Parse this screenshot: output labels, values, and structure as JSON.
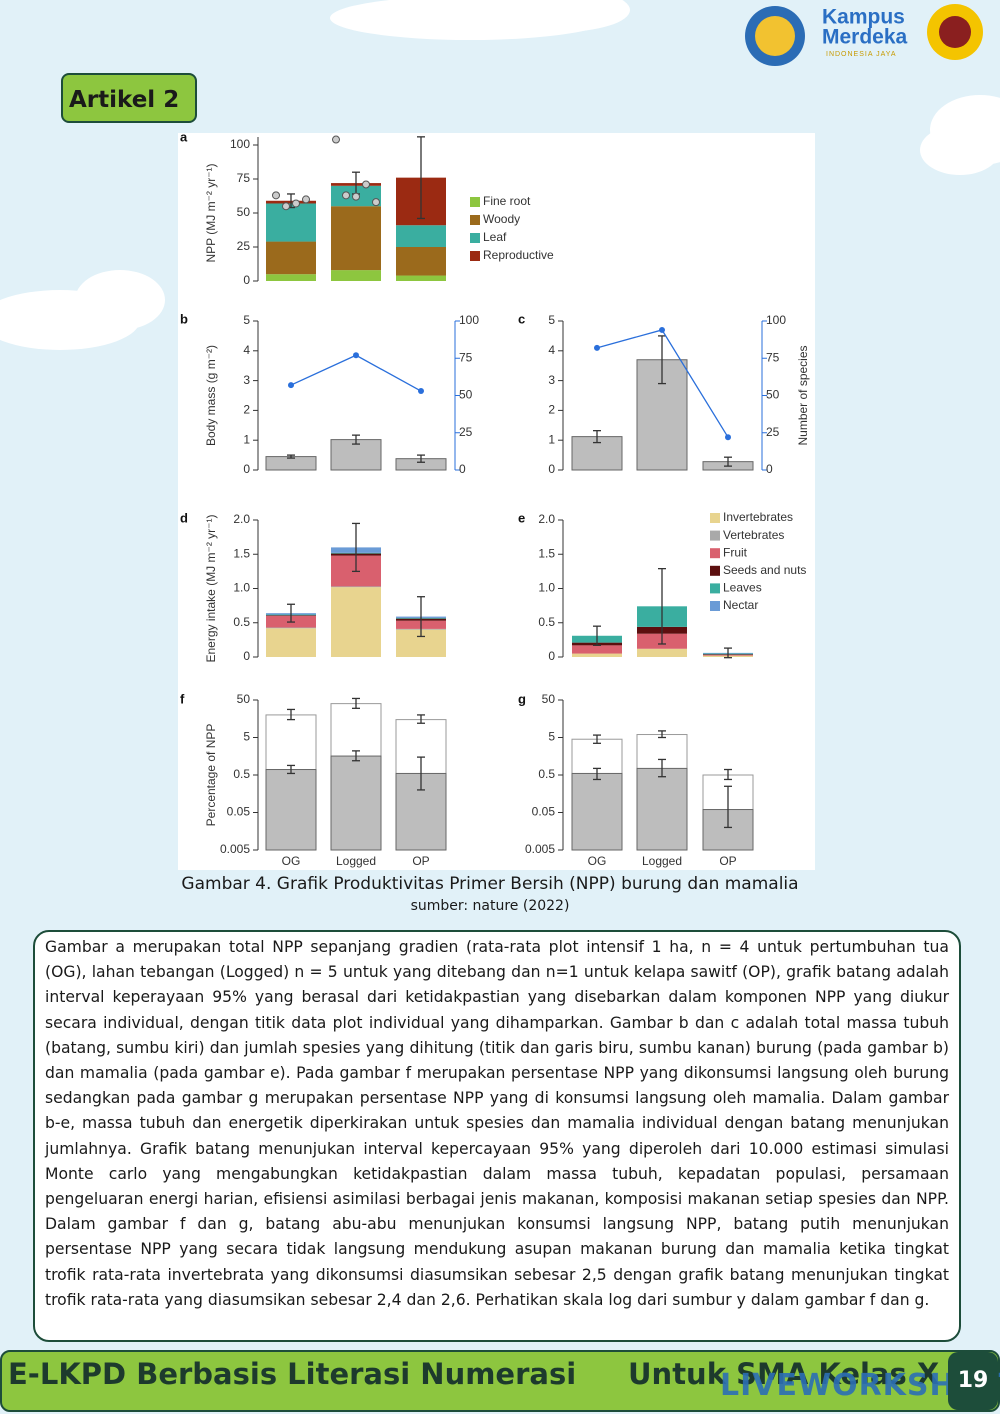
{
  "header": {
    "logo_line1": "Kampus",
    "logo_line2": "Merdeka",
    "logo_subtext": "INDONESIA JAYA"
  },
  "badge": "Artikel 2",
  "figure": {
    "caption": "Gambar 4. Grafik Produktivitas Primer Bersih (NPP) burung dan mamalia",
    "source": "sumber: nature (2022)",
    "panels": [
      {
        "label": "a",
        "type": "stacked_bar",
        "ylabel": "NPP (MJ m⁻² yr⁻¹)",
        "ylim": [
          0,
          100
        ],
        "yticks": [
          0,
          25,
          50,
          75,
          100
        ],
        "series": [
          {
            "name": "Fine root",
            "color": "#8dc63f",
            "values": [
              5,
              8,
              4
            ]
          },
          {
            "name": "Woody",
            "color": "#9b6a1c",
            "values": [
              24,
              47,
              21
            ]
          },
          {
            "name": "Leaf",
            "color": "#3aaea0",
            "values": [
              28,
              15,
              16
            ]
          },
          {
            "name": "Reproductive",
            "color": "#9b2a12",
            "values": [
              2,
              2,
              35
            ]
          }
        ],
        "errors": [
          5,
          8,
          30
        ],
        "points": [
          [
            63,
            55,
            57,
            60
          ],
          [
            104,
            63,
            62,
            71,
            58
          ],
          []
        ]
      },
      {
        "label": "b",
        "type": "bar_line",
        "ylabel": "Body mass (g m⁻²)",
        "ylim": [
          0,
          5
        ],
        "yticks": [
          0,
          1,
          2,
          3,
          4,
          5
        ],
        "bar_color": "#bdbdbd",
        "values": [
          0.45,
          1.02,
          0.38
        ],
        "errors": [
          0.05,
          0.15,
          0.12
        ],
        "y2lim": [
          0,
          100
        ],
        "y2ticks": [
          0,
          25,
          50,
          75,
          100
        ],
        "line_color": "#2a6fdb",
        "line_values": [
          57,
          77,
          53
        ]
      },
      {
        "label": "c",
        "type": "bar_line",
        "y2label": "Number of species",
        "ylim": [
          0,
          5
        ],
        "yticks": [
          0,
          1,
          2,
          3,
          4,
          5
        ],
        "bar_color": "#bdbdbd",
        "values": [
          1.12,
          3.7,
          0.28
        ],
        "errors": [
          0.2,
          0.8,
          0.15
        ],
        "y2lim": [
          0,
          100
        ],
        "y2ticks": [
          0,
          25,
          50,
          75,
          100
        ],
        "line_color": "#2a6fdb",
        "line_values": [
          82,
          94,
          22
        ]
      },
      {
        "label": "d",
        "type": "stacked_bar",
        "ylabel": "Energy intake (MJ m⁻² yr⁻¹)",
        "ylim": [
          0,
          2
        ],
        "yticks": [
          0,
          0.5,
          {
            "value": 1,
            "label": "1.0"
          },
          1.5,
          {
            "value": 2,
            "label": "2.0"
          }
        ],
        "series": [
          {
            "color": "#e8d48f",
            "values": [
              0.42,
              1.02,
              0.4
            ]
          },
          {
            "color": "#a9a9a9",
            "values": [
              0.01,
              0.01,
              0.01
            ]
          },
          {
            "color": "#d9606e",
            "values": [
              0.17,
              0.45,
              0.12
            ]
          },
          {
            "color": "#5c0f0f",
            "values": [
              0.01,
              0.03,
              0.03
            ]
          },
          {
            "color": "#3aaea0",
            "values": [
              0.01,
              0.01,
              0.01
            ]
          },
          {
            "color": "#6a9bd6",
            "values": [
              0.02,
              0.08,
              0.02
            ]
          }
        ],
        "errors": [
          0.13,
          0.35,
          0.29
        ]
      },
      {
        "label": "e",
        "type": "stacked_bar",
        "ylim": [
          0,
          2
        ],
        "yticks": [
          0,
          0.5,
          {
            "value": 1,
            "label": "1.0"
          },
          1.5,
          {
            "value": 2,
            "label": "2.0"
          }
        ],
        "series": [
          {
            "name": "Invertebrates",
            "color": "#e8d48f",
            "values": [
              0.05,
              0.12,
              0.02
            ]
          },
          {
            "name": "Vertebrates",
            "color": "#a9a9a9",
            "values": [
              0,
              0,
              0
            ]
          },
          {
            "name": "Fruit",
            "color": "#d9606e",
            "values": [
              0.12,
              0.22,
              0.01
            ]
          },
          {
            "name": "Seeds and nuts",
            "color": "#5c0f0f",
            "values": [
              0.04,
              0.1,
              0.01
            ]
          },
          {
            "name": "Leaves",
            "color": "#3aaea0",
            "values": [
              0.1,
              0.3,
              0.01
            ]
          },
          {
            "name": "Nectar",
            "color": "#6a9bd6",
            "values": [
              0,
              0,
              0.01
            ]
          }
        ],
        "errors": [
          0.14,
          0.55,
          0.07
        ]
      },
      {
        "label": "f",
        "type": "log_bar",
        "ylabel": "Percentage of NPP",
        "log": true,
        "ylim": [
          0.005,
          50
        ],
        "yticks": [
          0.005,
          0.05,
          0.5,
          5,
          50
        ],
        "categories": [
          "OG",
          "Logged",
          "OP"
        ],
        "total": {
          "color": "#ffffff",
          "values": [
            20,
            40,
            15
          ],
          "lower": [
            15,
            30,
            12
          ],
          "upper": [
            28,
            55,
            20
          ]
        },
        "direct": {
          "color": "#bdbdbd",
          "values": [
            0.7,
            1.6,
            0.55
          ],
          "lower": [
            0.55,
            1.2,
            0.2
          ],
          "upper": [
            0.9,
            2.2,
            1.5
          ]
        }
      },
      {
        "label": "g",
        "type": "log_bar",
        "log": true,
        "ylim": [
          0.005,
          50
        ],
        "yticks": [
          0.005,
          0.05,
          0.5,
          5,
          50
        ],
        "categories": [
          "OG",
          "Logged",
          "OP"
        ],
        "total": {
          "color": "#ffffff",
          "values": [
            4.5,
            6,
            0.5
          ],
          "lower": [
            3.5,
            5,
            0.38
          ],
          "upper": [
            5.8,
            7.5,
            0.7
          ]
        },
        "direct": {
          "color": "#bdbdbd",
          "values": [
            0.55,
            0.75,
            0.06
          ],
          "lower": [
            0.38,
            0.45,
            0.02
          ],
          "upper": [
            0.75,
            1.3,
            0.25
          ]
        }
      }
    ]
  },
  "paragraph": "Gambar a merupakan total NPP sepanjang gradien (rata-rata plot intensif 1 ha, n = 4 untuk pertumbuhan tua (OG), lahan tebangan (Logged) n = 5 untuk yang ditebang dan n=1 untuk kelapa sawitf (OP), grafik batang adalah interval keperayaan 95% yang berasal dari ketidakpastian yang disebarkan dalam komponen NPP yang diukur secara individual, dengan titik data plot individual yang dihamparkan. Gambar b dan c adalah total massa tubuh (batang, sumbu kiri) dan jumlah spesies yang dihitung (titik dan garis biru, sumbu kanan) burung (pada gambar b) dan mamalia (pada gambar e). Pada gambar f merupakan persentase NPP yang dikonsumsi langsung oleh burung sedangkan pada gambar g merupakan persentase NPP yang di konsumsi langsung oleh mamalia. Dalam gambar b-e, massa tubuh dan energetik diperkirakan untuk spesies dan mamalia individual dengan batang menunjukan jumlahnya. Grafik batang menunjukan interval kepercayaan 95% yang diperoleh dari 10.000 estimasi simulasi Monte carlo yang mengabungkan ketidakpastian dalam massa tubuh, kepadatan populasi, persamaan pengeluaran energi harian, efisiensi asimilasi berbagai jenis makanan, komposisi makanan setiap spesies dan NPP. Dalam gambar f dan g, batang abu-abu menunjukan konsumsi langsung NPP, batang putih menunjukan persentase NPP yang secara tidak langsung mendukung asupan makanan burung dan mamalia ketika tingkat trofik rata-rata invertebrata yang dikonsumsi diasumsikan sebesar 2,5 dengan grafik batang menunjukan tingkat trofik rata-rata yang diasumsikan sebesar 2,4 dan 2,6. Perhatikan skala log dari sumbur y dalam gambar f dan g.",
  "footer": {
    "left": "E-LKPD Berbasis Literasi Numerasi",
    "right": "Untuk SMA Kelas X",
    "page": "19",
    "watermark": "LIVEWORKSHEETS"
  }
}
